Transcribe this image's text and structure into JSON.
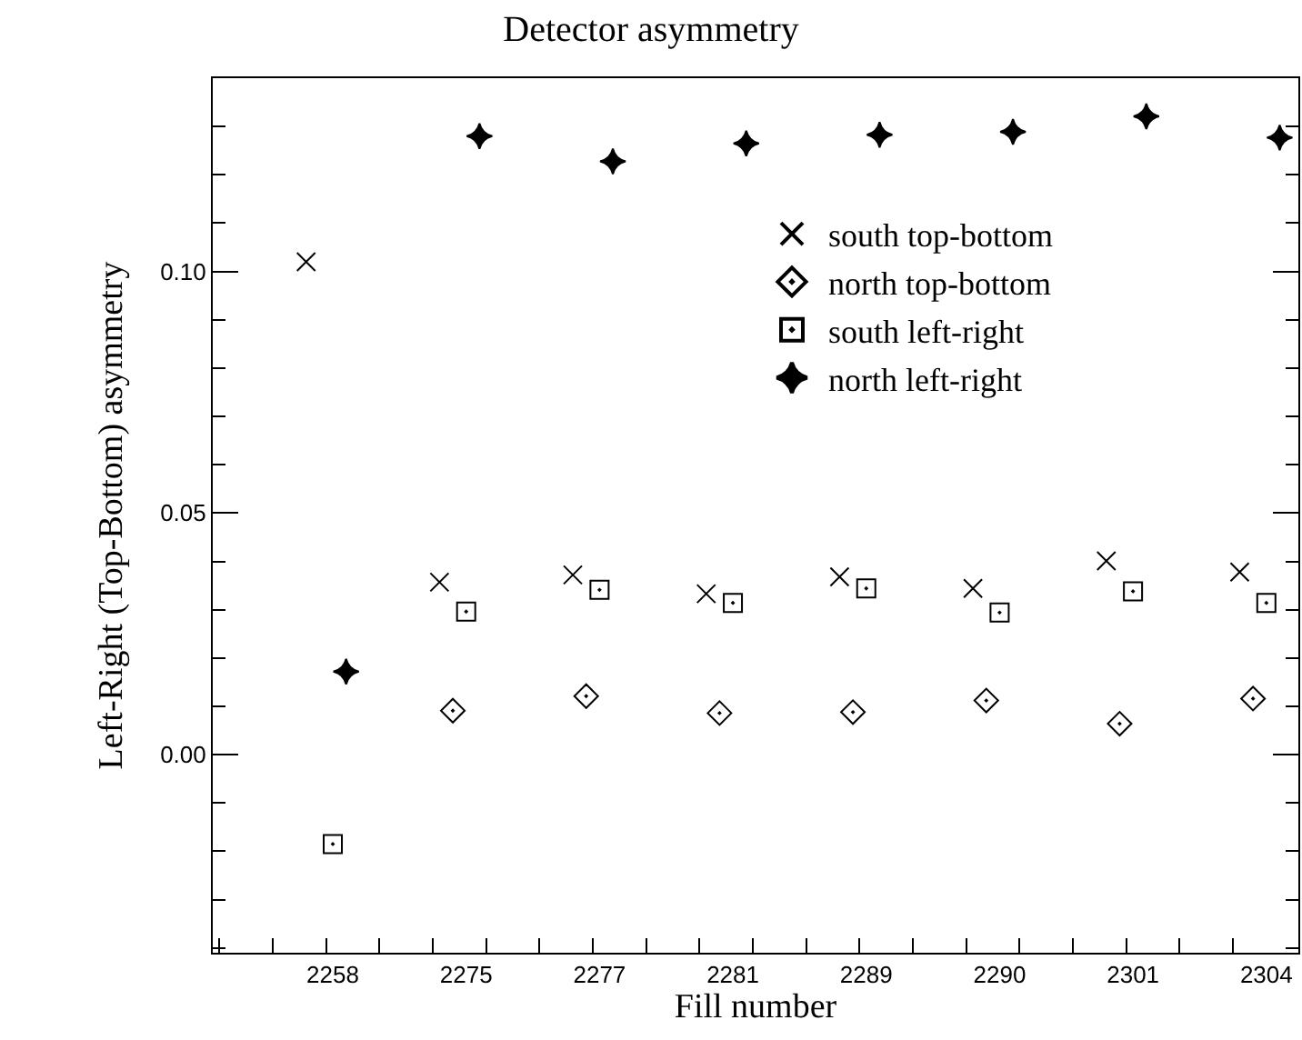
{
  "chart_data": {
    "type": "scatter",
    "title": "Detector asymmetry",
    "xlabel": "Fill number",
    "ylabel": "Left-Right (Top-Bottom) asymmetry",
    "categories": [
      "2258",
      "2275",
      "2277",
      "2281",
      "2289",
      "2290",
      "2301",
      "2304"
    ],
    "ylim": [
      -0.041,
      0.14
    ],
    "yticks": [
      {
        "value": 0,
        "label": "0.00"
      },
      {
        "value": 0.05,
        "label": "0.05"
      },
      {
        "value": 0.1,
        "label": "0.10"
      },
      {
        "value": -0.04,
        "label": null
      },
      {
        "value": -0.03,
        "label": null
      },
      {
        "value": -0.02,
        "label": null
      },
      {
        "value": -0.01,
        "label": null
      },
      {
        "value": 0.01,
        "label": null
      },
      {
        "value": 0.02,
        "label": null
      },
      {
        "value": 0.03,
        "label": null
      },
      {
        "value": 0.04,
        "label": null
      },
      {
        "value": 0.06,
        "label": null
      },
      {
        "value": 0.07,
        "label": null
      },
      {
        "value": 0.08,
        "label": null
      },
      {
        "value": 0.09,
        "label": null
      },
      {
        "value": 0.11,
        "label": null
      },
      {
        "value": 0.12,
        "label": null
      },
      {
        "value": 0.13,
        "label": null
      }
    ],
    "legend": "top right",
    "series": [
      {
        "name": "south top-bottom",
        "color": "#000000",
        "marker": "cross",
        "values": [
          0.102,
          0.0357,
          0.0372,
          0.0333,
          0.0368,
          0.0344,
          0.0401,
          0.0378
        ]
      },
      {
        "name": "north top-bottom",
        "color": "#000000",
        "marker": "diamond",
        "values": [
          null,
          0.0091,
          0.0121,
          0.0086,
          0.0088,
          0.0112,
          0.0064,
          0.0116
        ]
      },
      {
        "name": "south left-right",
        "color": "#000000",
        "marker": "square",
        "values": [
          -0.0185,
          0.0296,
          0.0341,
          0.0314,
          0.0344,
          0.0294,
          0.0338,
          0.0314
        ]
      },
      {
        "name": "north left-right",
        "color": "#000000",
        "marker": "star",
        "values": [
          0.0172,
          0.128,
          0.1228,
          0.1265,
          0.1283,
          0.1289,
          0.1321,
          0.1277
        ]
      }
    ]
  }
}
